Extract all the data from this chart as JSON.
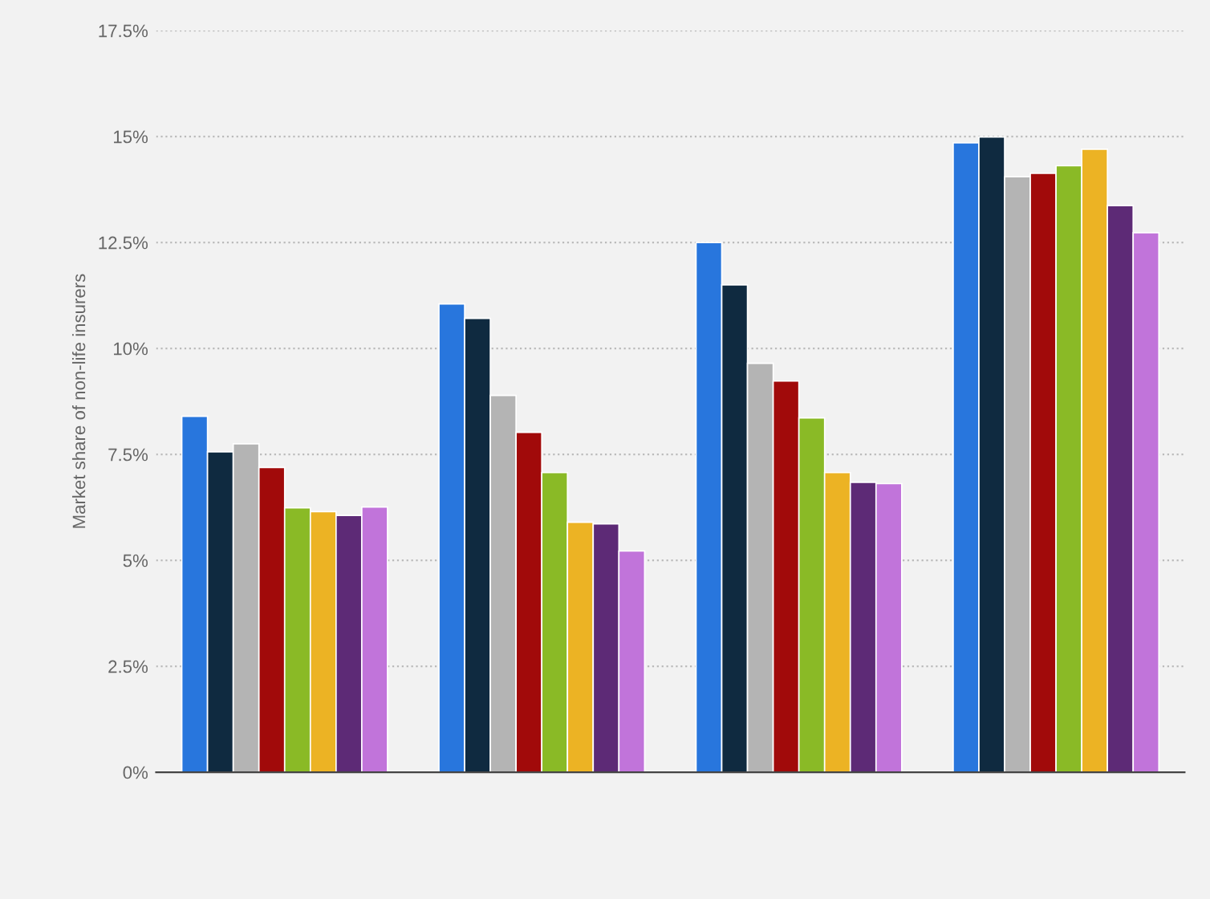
{
  "chart_data": {
    "type": "bar",
    "ylabel": "Market share of non-life insurers",
    "categories": [
      null,
      null,
      null,
      null
    ],
    "series": [
      {
        "color": "#2876dd",
        "values": [
          8.4,
          11.05,
          12.5,
          14.85
        ]
      },
      {
        "color": "#0f2a40",
        "values": [
          7.56,
          10.71,
          11.5,
          14.99
        ]
      },
      {
        "color": "#b4b4b4",
        "values": [
          7.75,
          8.89,
          9.65,
          14.05
        ]
      },
      {
        "color": "#a10a0a",
        "values": [
          7.19,
          8.02,
          9.23,
          14.13
        ]
      },
      {
        "color": "#8aba26",
        "values": [
          6.24,
          7.07,
          8.36,
          14.31
        ]
      },
      {
        "color": "#ecb324",
        "values": [
          6.15,
          5.9,
          7.07,
          14.7
        ]
      },
      {
        "color": "#5d2a76",
        "values": [
          6.06,
          5.86,
          6.84,
          13.37
        ]
      },
      {
        "color": "#c174da",
        "values": [
          6.26,
          5.22,
          6.81,
          12.73
        ]
      }
    ],
    "ylim": [
      0,
      17.5
    ],
    "yticks": [
      {
        "value": 0,
        "label": "0%"
      },
      {
        "value": 2.5,
        "label": "2.5%"
      },
      {
        "value": 5,
        "label": "5%"
      },
      {
        "value": 7.5,
        "label": "7.5%"
      },
      {
        "value": 10,
        "label": "10%"
      },
      {
        "value": 12.5,
        "label": "12.5%"
      },
      {
        "value": 15,
        "label": "15%"
      },
      {
        "value": 17.5,
        "label": "17.5%"
      }
    ],
    "grid": "y",
    "legend": false
  }
}
